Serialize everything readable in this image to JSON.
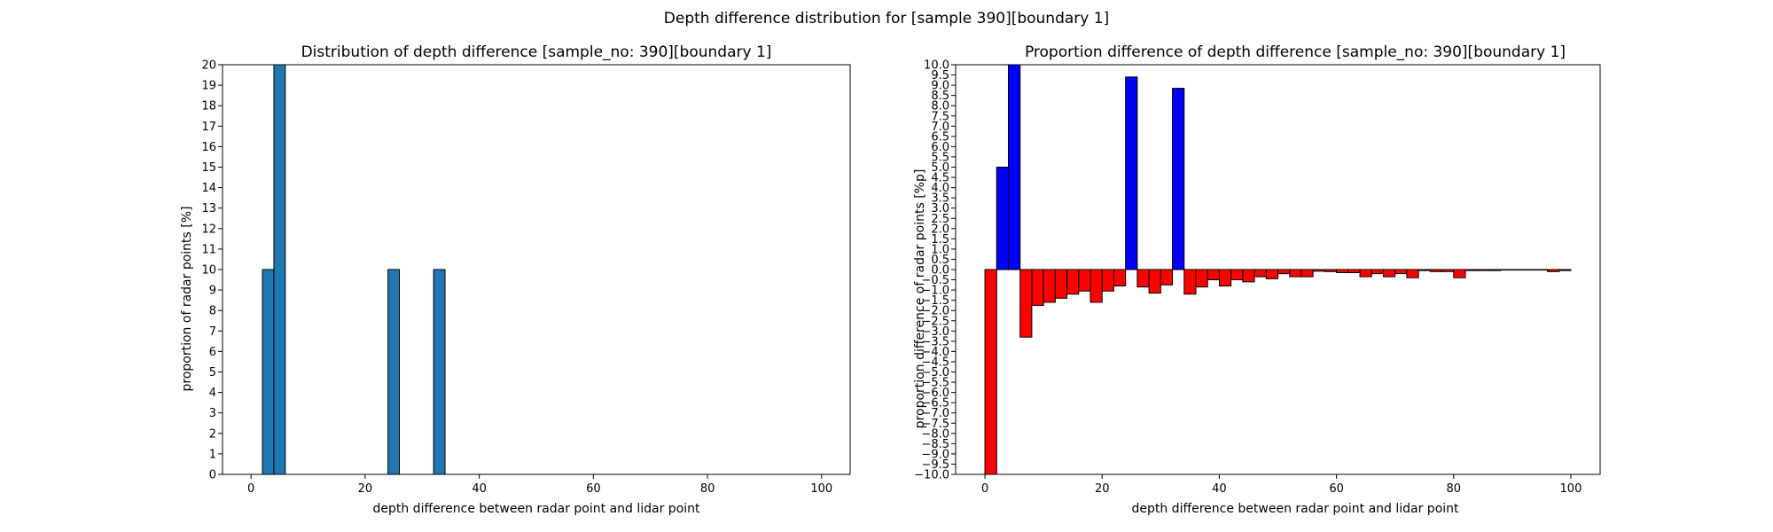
{
  "figure": {
    "suptitle": "Depth difference distribution for [sample 390][boundary 1]"
  },
  "chart_data": [
    {
      "type": "bar",
      "title": "Distribution of depth difference [sample_no: 390][boundary 1]",
      "xlabel": "depth difference between radar point and lidar point",
      "ylabel": "proportion of radar points [%]",
      "xlim": [
        -5,
        105
      ],
      "ylim": [
        0,
        20
      ],
      "x_ticks": [
        0,
        20,
        40,
        60,
        80,
        100
      ],
      "y_ticks": [
        0,
        1,
        2,
        3,
        4,
        5,
        6,
        7,
        8,
        9,
        10,
        11,
        12,
        13,
        14,
        15,
        16,
        17,
        18,
        19,
        20
      ],
      "bin_width": 2,
      "bar_color": "#1f77b4",
      "grid": false,
      "bins": [
        {
          "x": 2,
          "value": 10
        },
        {
          "x": 4,
          "value": 20
        },
        {
          "x": 24,
          "value": 10
        },
        {
          "x": 32,
          "value": 10
        }
      ]
    },
    {
      "type": "bar",
      "title": "Proportion difference of depth difference [sample_no: 390][boundary 1]",
      "xlabel": "depth difference between radar point and lidar point",
      "ylabel": "proportion difference of radar points [%p]",
      "xlim": [
        -5,
        105
      ],
      "ylim": [
        -10,
        10
      ],
      "x_ticks": [
        0,
        20,
        40,
        60,
        80,
        100
      ],
      "y_ticks": [
        -10.0,
        -9.5,
        -9.0,
        -8.5,
        -8.0,
        -7.5,
        -7.0,
        -6.5,
        -6.0,
        -5.5,
        -5.0,
        -4.5,
        -4.0,
        -3.5,
        -3.0,
        -2.5,
        -2.0,
        -1.5,
        -1.0,
        -0.5,
        0.0,
        0.5,
        1.0,
        1.5,
        2.0,
        2.5,
        3.0,
        3.5,
        4.0,
        4.5,
        5.0,
        5.5,
        6.0,
        6.5,
        7.0,
        7.5,
        8.0,
        8.5,
        9.0,
        9.5,
        10.0
      ],
      "bin_width": 2,
      "positive_color": "#0000ff",
      "negative_color": "#ff0000",
      "grid": false,
      "bins": [
        {
          "x": 0,
          "value": -10
        },
        {
          "x": 2,
          "value": 5.0
        },
        {
          "x": 4,
          "value": 10
        },
        {
          "x": 6,
          "value": -3.3
        },
        {
          "x": 8,
          "value": -1.75
        },
        {
          "x": 10,
          "value": -1.6
        },
        {
          "x": 12,
          "value": -1.4
        },
        {
          "x": 14,
          "value": -1.2
        },
        {
          "x": 16,
          "value": -1.05
        },
        {
          "x": 18,
          "value": -1.6
        },
        {
          "x": 20,
          "value": -1.05
        },
        {
          "x": 22,
          "value": -0.8
        },
        {
          "x": 24,
          "value": 9.4
        },
        {
          "x": 26,
          "value": -0.85
        },
        {
          "x": 28,
          "value": -1.15
        },
        {
          "x": 30,
          "value": -0.75
        },
        {
          "x": 32,
          "value": 8.85
        },
        {
          "x": 34,
          "value": -1.2
        },
        {
          "x": 36,
          "value": -0.85
        },
        {
          "x": 38,
          "value": -0.5
        },
        {
          "x": 40,
          "value": -0.8
        },
        {
          "x": 42,
          "value": -0.5
        },
        {
          "x": 44,
          "value": -0.6
        },
        {
          "x": 46,
          "value": -0.35
        },
        {
          "x": 48,
          "value": -0.45
        },
        {
          "x": 50,
          "value": -0.2
        },
        {
          "x": 52,
          "value": -0.35
        },
        {
          "x": 54,
          "value": -0.35
        },
        {
          "x": 56,
          "value": -0.08
        },
        {
          "x": 58,
          "value": -0.1
        },
        {
          "x": 60,
          "value": -0.15
        },
        {
          "x": 62,
          "value": -0.15
        },
        {
          "x": 64,
          "value": -0.35
        },
        {
          "x": 66,
          "value": -0.2
        },
        {
          "x": 68,
          "value": -0.35
        },
        {
          "x": 70,
          "value": -0.2
        },
        {
          "x": 72,
          "value": -0.4
        },
        {
          "x": 74,
          "value": -0.05
        },
        {
          "x": 76,
          "value": -0.1
        },
        {
          "x": 78,
          "value": -0.1
        },
        {
          "x": 80,
          "value": -0.4
        },
        {
          "x": 82,
          "value": -0.05
        },
        {
          "x": 84,
          "value": -0.05
        },
        {
          "x": 86,
          "value": -0.05
        },
        {
          "x": 88,
          "value": -0.02
        },
        {
          "x": 90,
          "value": -0.02
        },
        {
          "x": 92,
          "value": -0.02
        },
        {
          "x": 94,
          "value": -0.02
        },
        {
          "x": 96,
          "value": -0.1
        },
        {
          "x": 98,
          "value": -0.05
        }
      ]
    }
  ]
}
